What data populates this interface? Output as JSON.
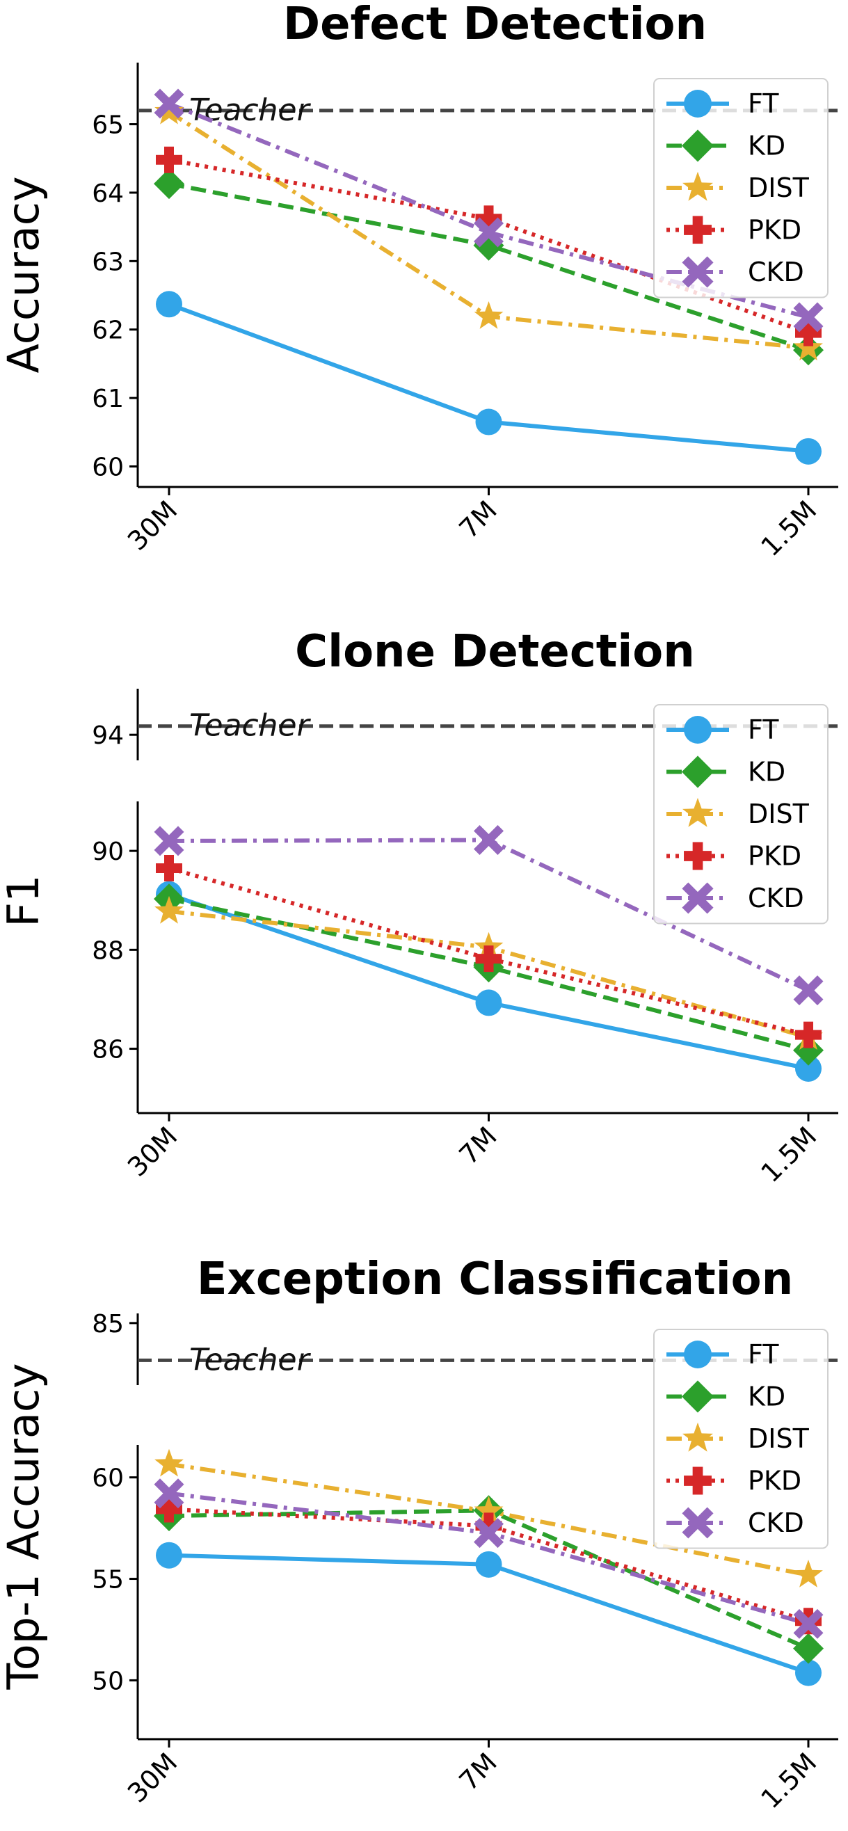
{
  "chart_data": [
    {
      "type": "line",
      "title": "Defect Detection",
      "ylabel": "Accuracy",
      "xlabel": "",
      "categories": [
        "30M",
        "7M",
        "1.5M"
      ],
      "ylim": [
        59.7,
        65.9
      ],
      "yticks": [
        60,
        61,
        62,
        63,
        64,
        65
      ],
      "broken_axis": false,
      "teacher": {
        "label": "Teacher",
        "value": 65.2
      },
      "legend_position": "top-right",
      "series": [
        {
          "name": "FT",
          "values": [
            62.37,
            60.65,
            60.22
          ]
        },
        {
          "name": "KD",
          "values": [
            64.13,
            63.23,
            61.7
          ]
        },
        {
          "name": "DIST",
          "values": [
            65.18,
            62.19,
            61.73
          ]
        },
        {
          "name": "PKD",
          "values": [
            64.48,
            63.62,
            61.95
          ]
        },
        {
          "name": "CKD",
          "values": [
            65.3,
            63.42,
            62.18
          ]
        }
      ]
    },
    {
      "type": "line",
      "title": "Clone Detection",
      "ylabel": "F1",
      "xlabel": "",
      "categories": [
        "30M",
        "7M",
        "1.5M"
      ],
      "ylim": [
        84.7,
        91.0
      ],
      "yticks": [
        86,
        88,
        90
      ],
      "broken_axis": true,
      "upper_ylim": [
        93.5,
        94.9
      ],
      "upper_yticks": [
        94
      ],
      "teacher": {
        "label": "Teacher",
        "value": 94.17
      },
      "legend_position": "top-right",
      "series": [
        {
          "name": "FT",
          "values": [
            89.12,
            86.93,
            85.6
          ]
        },
        {
          "name": "KD",
          "values": [
            89.03,
            87.65,
            85.97
          ]
        },
        {
          "name": "DIST",
          "values": [
            88.78,
            88.05,
            86.23
          ]
        },
        {
          "name": "PKD",
          "values": [
            89.65,
            87.82,
            86.28
          ]
        },
        {
          "name": "CKD",
          "values": [
            90.2,
            90.22,
            87.18
          ]
        }
      ]
    },
    {
      "type": "line",
      "title": "Exception Classification",
      "ylabel": "Top-1 Accuracy",
      "xlabel": "",
      "categories": [
        "30M",
        "7M",
        "1.5M"
      ],
      "ylim": [
        47.1,
        61.6
      ],
      "yticks": [
        50,
        55,
        60
      ],
      "broken_axis": true,
      "upper_ylim": [
        80.5,
        85.7
      ],
      "upper_yticks": [
        85
      ],
      "teacher": {
        "label": "Teacher",
        "value": 82.3
      },
      "legend_position": "top-right",
      "series": [
        {
          "name": "FT",
          "values": [
            56.16,
            55.71,
            50.37
          ]
        },
        {
          "name": "KD",
          "values": [
            58.1,
            58.37,
            51.57
          ]
        },
        {
          "name": "DIST",
          "values": [
            60.65,
            58.33,
            55.19
          ]
        },
        {
          "name": "PKD",
          "values": [
            58.43,
            57.61,
            52.92
          ]
        },
        {
          "name": "CKD",
          "values": [
            59.21,
            57.26,
            52.78
          ]
        }
      ]
    }
  ],
  "style": {
    "series": {
      "FT": {
        "color": "#32A5E8",
        "marker": "circle",
        "dash": "solid"
      },
      "KD": {
        "color": "#2CA02C",
        "marker": "diamond",
        "dash": "dashed"
      },
      "DIST": {
        "color": "#E8B030",
        "marker": "star",
        "dash": "dashdot"
      },
      "PKD": {
        "color": "#D62728",
        "marker": "plus",
        "dash": "dotted"
      },
      "CKD": {
        "color": "#9467BD",
        "marker": "x",
        "dash": "dashdot"
      }
    },
    "teacher_color": "#444444"
  }
}
